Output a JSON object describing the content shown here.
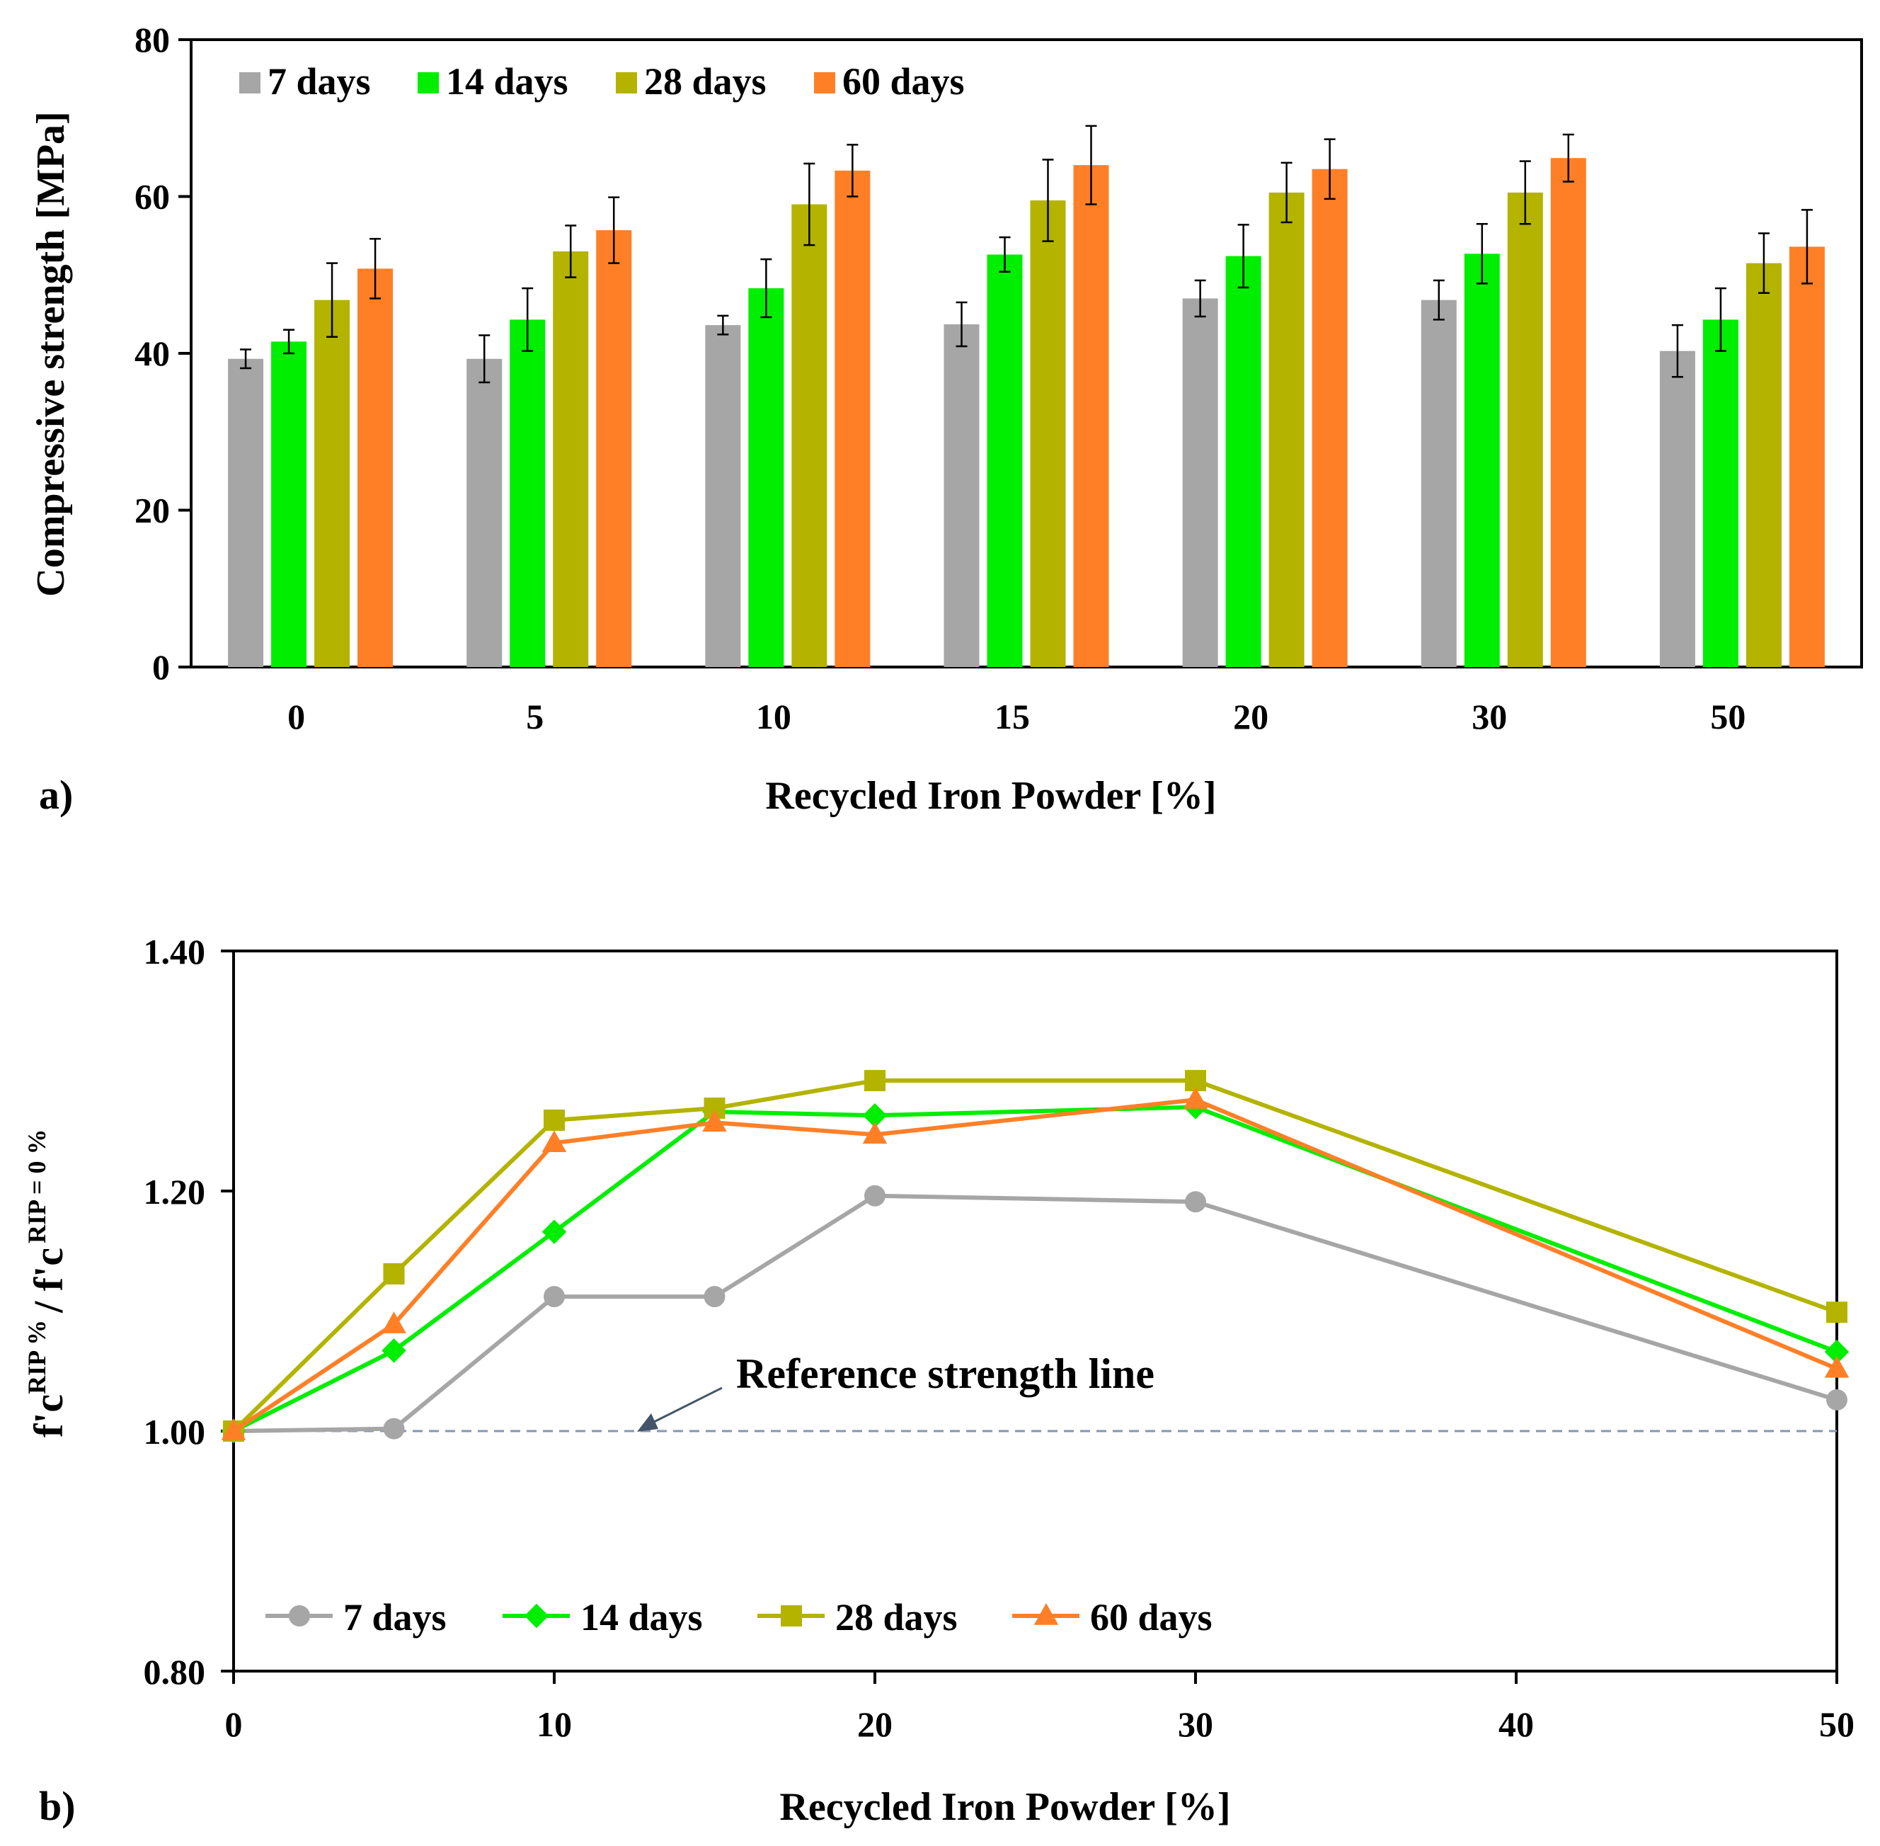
{
  "chart_data": [
    {
      "type": "bar",
      "panel_label": "a)",
      "title": "",
      "xlabel": "Recycled Iron Powder [%]",
      "ylabel": "Compressive strength [MPa]",
      "ylim": [
        0,
        80
      ],
      "yticks": [
        "0",
        "20",
        "40",
        "60",
        "80"
      ],
      "categories": [
        "0",
        "5",
        "10",
        "15",
        "20",
        "30",
        "50"
      ],
      "legend_position": "top-left",
      "grid": false,
      "series": [
        {
          "name": "7 days",
          "color": "#a6a6a6",
          "values": [
            39.3,
            39.3,
            43.6,
            43.7,
            47.0,
            46.8,
            40.3
          ],
          "errors": [
            1.2,
            3.0,
            1.2,
            2.8,
            2.3,
            2.5,
            3.3
          ]
        },
        {
          "name": "14 days",
          "color": "#00ee00",
          "values": [
            41.5,
            44.3,
            48.3,
            52.6,
            52.4,
            52.7,
            44.3
          ],
          "errors": [
            1.5,
            4.0,
            3.7,
            2.2,
            4.0,
            3.8,
            4.0
          ]
        },
        {
          "name": "28 days",
          "color": "#b3b300",
          "values": [
            46.8,
            53.0,
            59.0,
            59.5,
            60.5,
            60.5,
            51.5
          ],
          "errors": [
            4.7,
            3.3,
            5.2,
            5.2,
            3.8,
            4.0,
            3.8
          ]
        },
        {
          "name": "60 days",
          "color": "#ff7f27",
          "values": [
            50.8,
            55.7,
            63.3,
            64.0,
            63.5,
            64.9,
            53.6
          ],
          "errors": [
            3.8,
            4.2,
            3.3,
            5.0,
            3.8,
            3.0,
            4.7
          ]
        }
      ]
    },
    {
      "type": "line",
      "panel_label": "b)",
      "title": "",
      "xlabel": "Recycled Iron Powder [%]",
      "ylabel_main": "f'c",
      "ylabel_sup1": "RIP %",
      "ylabel_div": "/ f'c",
      "ylabel_sup2": "RIP = 0 %",
      "xlim": [
        0,
        50
      ],
      "ylim": [
        0.8,
        1.4
      ],
      "xticks": [
        "0",
        "10",
        "20",
        "30",
        "40",
        "50"
      ],
      "yticks": [
        "0.80",
        "1.00",
        "1.20",
        "1.40"
      ],
      "x": [
        0,
        5,
        10,
        15,
        20,
        30,
        50
      ],
      "legend_position": "bottom-left",
      "grid": false,
      "reference_line": {
        "y": 1.0,
        "label": "Reference strength line",
        "color": "#8497b0"
      },
      "series": [
        {
          "name": "7 days",
          "color": "#a6a6a6",
          "marker": "circle",
          "values": [
            1.0,
            1.002,
            1.112,
            1.112,
            1.196,
            1.191,
            1.026
          ]
        },
        {
          "name": "14 days",
          "color": "#00ee00",
          "marker": "diamond",
          "values": [
            1.0,
            1.067,
            1.166,
            1.266,
            1.263,
            1.27,
            1.066
          ]
        },
        {
          "name": "28 days",
          "color": "#b3b300",
          "marker": "square",
          "values": [
            1.0,
            1.131,
            1.259,
            1.269,
            1.292,
            1.292,
            1.099
          ]
        },
        {
          "name": "60 days",
          "color": "#ff7f27",
          "marker": "triangle",
          "values": [
            1.0,
            1.089,
            1.24,
            1.257,
            1.247,
            1.276,
            1.052
          ]
        }
      ]
    }
  ]
}
